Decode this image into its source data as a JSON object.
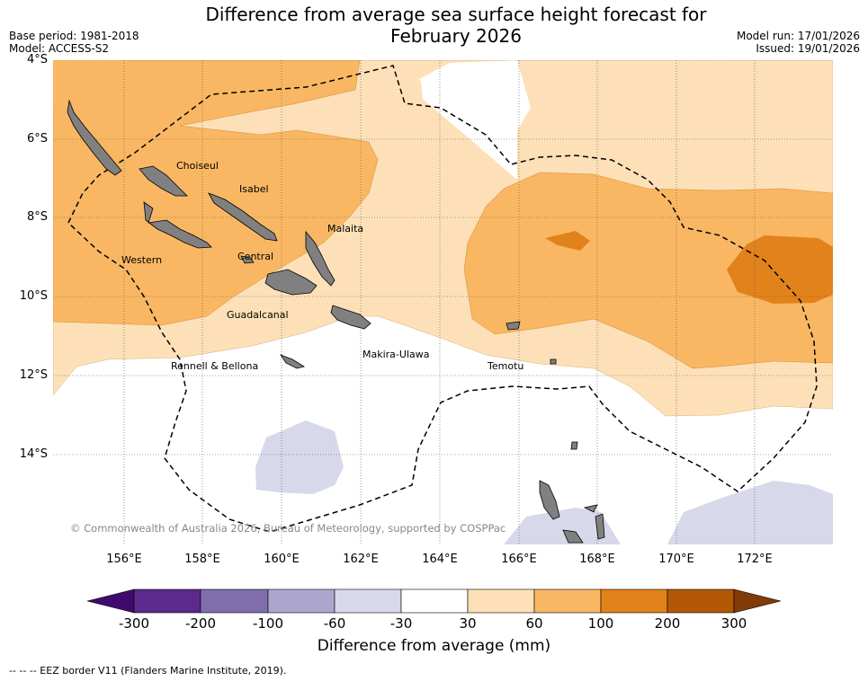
{
  "title_line1": "Difference from average sea surface height forecast for",
  "title_line2": "February 2026",
  "base_period": "Base period: 1981-2018",
  "model": "Model: ACCESS-S2",
  "model_run": "Model run: 17/01/2026",
  "issued": "Issued: 19/01/2026",
  "lat_labels": [
    "4°S",
    "6°S",
    "8°S",
    "10°S",
    "12°S",
    "14°S"
  ],
  "lon_labels": [
    "156°E",
    "158°E",
    "160°E",
    "162°E",
    "164°E",
    "166°E",
    "168°E",
    "170°E",
    "172°E"
  ],
  "regions": {
    "choiseul": "Choiseul",
    "isabel": "Isabel",
    "malaita": "Malaita",
    "western": "Western",
    "central": "Central",
    "guadalcanal": "Guadalcanal",
    "makira": "Makira-Ulawa",
    "rennell": "Rennell & Bellona",
    "temotu": "Temotu"
  },
  "copyright": "© Commonwealth of Australia 2026, Bureau of Meteorology, supported by COSPPac",
  "colorbar": {
    "ticks": [
      "-300",
      "-200",
      "-100",
      "-60",
      "-30",
      "30",
      "60",
      "100",
      "200",
      "300"
    ],
    "colors": [
      "#3f0a6e",
      "#5b2a8c",
      "#7f6eab",
      "#aca6cf",
      "#d7d8ea",
      "#ffffff",
      "#fde0b7",
      "#f9b763",
      "#e2821a",
      "#b35806",
      "#7f3b08"
    ],
    "title": "Difference from average (mm)"
  },
  "footer": "--  --  -- EEZ border V11 (Flanders Marine Institute, 2019)."
}
